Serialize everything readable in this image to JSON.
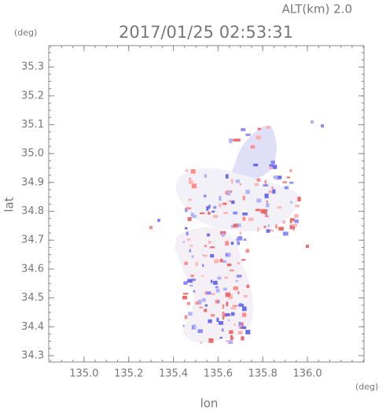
{
  "chart_data": {
    "type": "map",
    "title": "2017/01/25 02:53:31",
    "subtitle": "ALT(km) 2.0",
    "x_label": "lon",
    "y_label": "lat",
    "x_unit": "(deg)",
    "y_unit": "(deg)",
    "xlim": [
      134.842,
      136.253
    ],
    "ylim": [
      34.278,
      35.374
    ],
    "xticks": [
      {
        "value": 135.0,
        "label": "135.0"
      },
      135.2,
      135.4,
      135.6,
      135.8,
      {
        "value": 136.0,
        "label": "136.0"
      }
    ],
    "yticks": [
      34.3,
      34.4,
      34.5,
      34.6,
      34.7,
      34.8,
      34.9,
      {
        "value": 35.0,
        "label": "35.0"
      },
      35.1,
      35.2,
      35.3
    ]
  }
}
